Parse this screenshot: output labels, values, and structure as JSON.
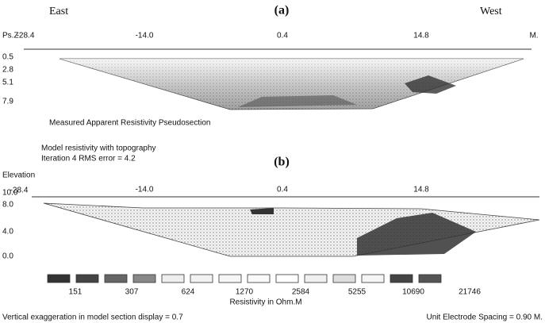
{
  "panel_a": {
    "label": "(a)",
    "left_direction": "East",
    "right_direction": "West",
    "y_axis_title": "Ps.Z",
    "x_labels": [
      "-28.4",
      "-14.0",
      "0.4",
      "14.8"
    ],
    "x_unit": "M.",
    "y_labels": [
      "0.5",
      "2.8",
      "5.1",
      "7.9"
    ],
    "caption": "Measured Apparent Resistivity Pseudosection"
  },
  "panel_b": {
    "title": "Model resistivity with topography",
    "subtitle": "Iteration 4 RMS error = 4.2",
    "label": "(b)",
    "y_axis_title": "Elevation",
    "x_labels": [
      "-28.4",
      "-14.0",
      "0.4",
      "14.8"
    ],
    "y_labels": [
      "10.0",
      "8.0",
      "4.0",
      "0.0"
    ]
  },
  "legend": {
    "values": [
      "151",
      "307",
      "624",
      "1270",
      "2584",
      "5255",
      "10690",
      "21746"
    ],
    "title": "Resistivity in Ohm.M"
  },
  "footer": {
    "left": "Vertical exaggeration in model section display = 0.7",
    "right": "Unit Electrode Spacing = 0.90 M."
  }
}
